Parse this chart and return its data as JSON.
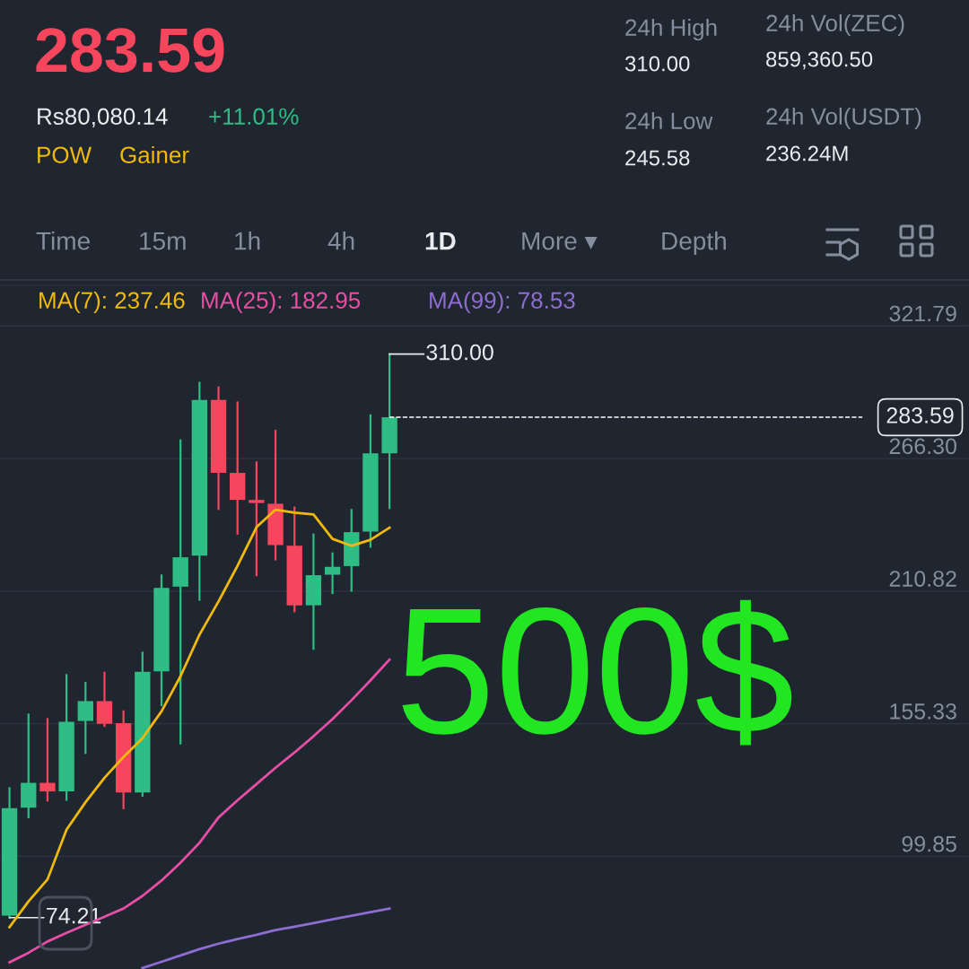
{
  "chart_data": {
    "type": "candlestick",
    "title": "283.59",
    "categories": [
      null,
      null,
      null,
      null,
      null,
      null,
      null,
      null,
      null,
      null,
      null,
      null,
      null,
      null,
      null,
      null,
      null,
      null,
      null,
      null,
      null,
      null,
      null,
      null,
      null,
      null,
      null,
      null,
      null,
      null,
      null,
      null,
      null,
      null,
      null,
      null,
      null,
      null,
      null,
      null,
      null,
      null,
      null,
      null,
      null,
      null,
      null,
      null,
      null,
      null,
      null
    ],
    "ohlc": [
      [
        75.0,
        128.4,
        74.21,
        120.0
      ],
      [
        120.2,
        159.2,
        116.2,
        130.6
      ],
      [
        130.6,
        157.3,
        123.2,
        127.0
      ],
      [
        127.0,
        175.7,
        123.5,
        156.1
      ],
      [
        156.5,
        172.4,
        143.1,
        164.8
      ],
      [
        164.8,
        176.7,
        154.4,
        155.3
      ],
      [
        155.6,
        160.5,
        120.0,
        126.6
      ],
      [
        126.6,
        185.1,
        125.2,
        177.1
      ],
      [
        177.3,
        217.4,
        163.1,
        212.2
      ],
      [
        212.7,
        273.9,
        147.1,
        225.0
      ],
      [
        225.7,
        298.0,
        207.2,
        290.8
      ],
      [
        290.8,
        296.1,
        245.2,
        260.3
      ],
      [
        260.3,
        289.8,
        234.9,
        249.0
      ],
      [
        249.0,
        264.7,
        217.5,
        247.7
      ],
      [
        247.4,
        277.9,
        224.1,
        230.1
      ],
      [
        229.8,
        245.8,
        202.4,
        204.9
      ],
      [
        204.9,
        234.5,
        186.7,
        217.5
      ],
      [
        217.7,
        226.6,
        210.0,
        221.0
      ],
      [
        221.3,
        244.8,
        211.0,
        235.5
      ],
      [
        235.7,
        284.4,
        229.4,
        268.5
      ],
      [
        268.5,
        310.0,
        245.58,
        283.59
      ],
      null,
      null,
      null,
      null,
      null,
      null,
      null,
      null,
      null,
      null,
      null,
      null,
      null,
      null,
      null,
      null,
      null,
      null,
      null,
      null,
      null,
      null,
      null,
      null,
      null,
      null,
      null,
      null,
      null,
      null
    ],
    "colors": [
      "#2ebd85",
      "#2ebd85",
      "#f6465d",
      "#2ebd85",
      "#2ebd85",
      "#f6465d",
      "#f6465d",
      "#2ebd85",
      "#2ebd85",
      "#2ebd85",
      "#2ebd85",
      "#f6465d",
      "#f6465d",
      "#f6465d",
      "#f6465d",
      "#f6465d",
      "#2ebd85",
      "#2ebd85",
      "#2ebd85",
      "#2ebd85",
      "#2ebd85",
      null,
      null,
      null,
      null,
      null,
      null,
      null,
      null,
      null,
      null,
      null,
      null,
      null,
      null,
      null,
      null,
      null,
      null,
      null,
      null,
      null,
      null,
      null,
      null,
      null,
      null,
      null,
      null,
      null,
      null
    ],
    "series": [
      {
        "name": "MA(7): 237.46",
        "type": "line",
        "color": "#f0b90b",
        "values": [
          70.2,
          81.0,
          90.2,
          111.0,
          122.5,
          132.7,
          141.4,
          149.3,
          160.5,
          175.2,
          192.6,
          206.5,
          221.4,
          237.6,
          244.9,
          243.7,
          242.9,
          232.7,
          229.8,
          232.3,
          237.4,
          null,
          null,
          null,
          null,
          null,
          null,
          null,
          null,
          null,
          null,
          null,
          null,
          null,
          null,
          null,
          null,
          null,
          null,
          null,
          null,
          null,
          null,
          null,
          null,
          null,
          null,
          null,
          null,
          null,
          null
        ]
      },
      {
        "name": "MA(25): 182.95",
        "type": "line",
        "color": "#e84fa4",
        "values": [
          55.5,
          59.5,
          64.2,
          67.8,
          71.2,
          74.6,
          78.0,
          83.3,
          89.7,
          97.2,
          105.5,
          116.1,
          123.3,
          130.1,
          136.9,
          143.3,
          150.1,
          157.3,
          165.2,
          173.5,
          182.2,
          null,
          null,
          null,
          null,
          null,
          null,
          null,
          null,
          null,
          null,
          null,
          null,
          null,
          null,
          null,
          null,
          null,
          null,
          null,
          null,
          null,
          null,
          null,
          null,
          null,
          null,
          null,
          null,
          null,
          null
        ]
      },
      {
        "name": "MA(99): 78.53",
        "type": "line",
        "color": "#8e6cd1",
        "values": [
          null,
          null,
          null,
          null,
          null,
          null,
          null,
          53.1,
          55.7,
          58.4,
          61.0,
          63.3,
          65.2,
          67.0,
          69.0,
          70.4,
          71.9,
          73.5,
          75.0,
          76.5,
          78.0,
          null,
          null,
          null,
          null,
          null,
          null,
          null,
          null,
          null,
          null,
          null,
          null,
          null,
          null,
          null,
          null,
          null,
          null,
          null,
          null,
          null,
          null,
          null,
          null,
          null,
          null,
          null,
          null,
          null,
          null
        ]
      }
    ],
    "ylim": [
      52.7,
      338.8
    ],
    "yticks": [
      321.79,
      {
        "value": 266.3,
        "label": "266.30"
      },
      210.82,
      155.33,
      99.85
    ],
    "grid": "y",
    "legend": "top left",
    "ref_lines": [
      {
        "axis": "y",
        "value": 283.59,
        "label": "283.59",
        "line_style": "dashed",
        "color": "#ffffff"
      }
    ],
    "annotations": [
      "310.00",
      "74.21",
      "Rs80,080.14",
      "+11.01%",
      "POW",
      "Gainer",
      "24h High",
      "310.00",
      "24h Low",
      "245.58",
      "24h Vol(ZEC)",
      "859,360.50",
      "24h Vol(USDT)",
      "236.24M",
      "Time",
      "15m",
      "1h",
      "4h",
      "1D",
      "More ▾",
      "Depth",
      "500$"
    ]
  }
}
